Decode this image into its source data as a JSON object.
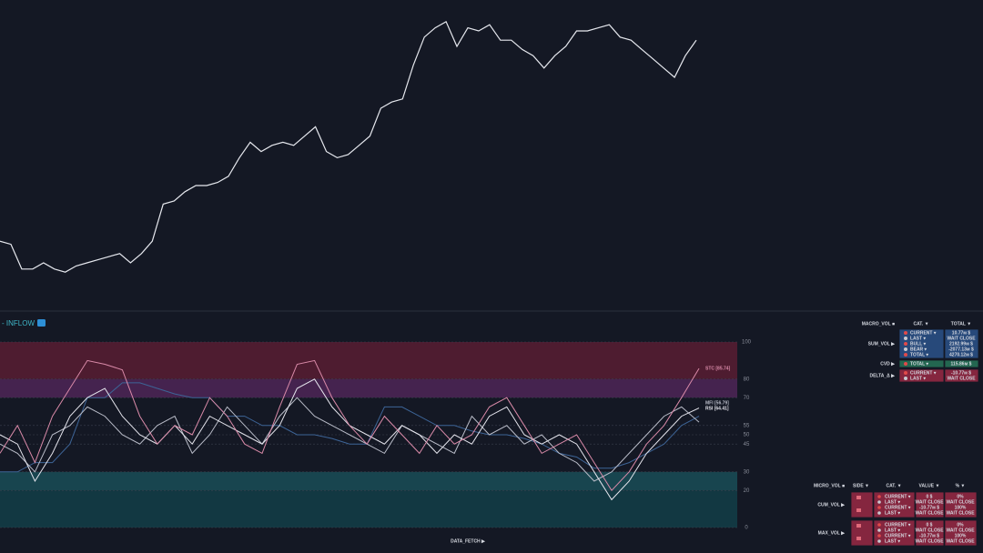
{
  "chart_data": [
    {
      "type": "line",
      "color": "#e6e8ee",
      "ylim": [
        0,
        100
      ],
      "values": [
        22,
        21,
        13,
        13,
        15,
        13,
        12,
        14,
        15,
        16,
        17,
        18,
        15,
        18,
        22,
        34,
        35,
        38,
        40,
        40,
        41,
        43,
        49,
        54,
        51,
        53,
        54,
        53,
        56,
        59,
        51,
        49,
        50,
        53,
        56,
        65,
        67,
        68,
        79,
        88,
        91,
        93,
        85,
        91,
        90,
        92,
        87,
        87,
        84,
        82,
        78,
        82,
        85,
        90,
        90,
        91,
        92,
        88,
        87,
        84,
        81,
        78,
        75,
        82,
        87
      ]
    },
    {
      "type": "line",
      "title": "- INFLOW",
      "ylim": [
        0,
        100
      ],
      "yticks": [
        0,
        20,
        30,
        45,
        50,
        55,
        70,
        80,
        100
      ],
      "bands": [
        {
          "from": 80,
          "to": 100,
          "color": "#4e1c30"
        },
        {
          "from": 70,
          "to": 80,
          "color": "#45234f"
        },
        {
          "from": 20,
          "to": 30,
          "color": "#18454f"
        },
        {
          "from": 0,
          "to": 20,
          "color": "#123842"
        }
      ],
      "series": [
        {
          "color": "#3d6496",
          "values": [
            30,
            30,
            35,
            35,
            45,
            70,
            70,
            78,
            78,
            75,
            72,
            70,
            70,
            60,
            60,
            55,
            55,
            50,
            50,
            48,
            45,
            45,
            65,
            65,
            60,
            55,
            55,
            52,
            50,
            50,
            48,
            45,
            40,
            38,
            32,
            32,
            35,
            40,
            45,
            55,
            60
          ]
        },
        {
          "name": "MFI [56.79]",
          "color": "#b9bcc8",
          "values": [
            45,
            40,
            30,
            50,
            55,
            65,
            60,
            50,
            45,
            55,
            60,
            40,
            50,
            65,
            55,
            45,
            60,
            70,
            60,
            55,
            50,
            45,
            40,
            55,
            50,
            45,
            40,
            60,
            50,
            55,
            45,
            50,
            40,
            35,
            25,
            30,
            40,
            50,
            60,
            65,
            56.79
          ]
        },
        {
          "name": "RSI [64.41]",
          "color": "#e4e4ec",
          "values": [
            50,
            45,
            25,
            40,
            60,
            70,
            75,
            60,
            50,
            45,
            55,
            45,
            60,
            55,
            50,
            45,
            55,
            75,
            80,
            65,
            55,
            50,
            45,
            55,
            50,
            40,
            50,
            45,
            60,
            65,
            50,
            45,
            50,
            45,
            30,
            15,
            25,
            40,
            50,
            60,
            64.41
          ]
        },
        {
          "name": "STC [85.74]",
          "color": "#d98aa8",
          "values": [
            40,
            55,
            35,
            60,
            75,
            90,
            88,
            85,
            60,
            45,
            55,
            50,
            70,
            60,
            45,
            40,
            65,
            88,
            90,
            70,
            55,
            45,
            60,
            50,
            40,
            55,
            45,
            50,
            65,
            70,
            55,
            40,
            45,
            50,
            35,
            20,
            30,
            45,
            55,
            70,
            85.74
          ]
        }
      ]
    }
  ],
  "macro_table": {
    "header": [
      "MACRO_VOL ■",
      "CAT. ▼",
      "TOTAL ▼"
    ],
    "rows": [
      {
        "label": "SUM_VOL ▶",
        "cat": [
          "CURRENT ▾",
          "LAST ▾",
          "BULL ▾",
          "BEAR ▾",
          "TOTAL ▾"
        ],
        "total": [
          "10.77м $",
          "WAIT CLOSE",
          "2192.99м $",
          "-2077.13м $",
          "4270.12м $"
        ]
      },
      {
        "label": "CVD ▶",
        "cat": [
          "TOTAL ▾"
        ],
        "total": [
          "115.86м $"
        ]
      },
      {
        "label": "DELTA_Δ ▶",
        "cat": [
          "CURRENT ▾",
          "LAST ▾"
        ],
        "total": [
          "-10.77м $",
          "WAIT CLOSE"
        ]
      }
    ]
  },
  "micro_table": {
    "header": [
      "MICRO_VOL ■",
      "SIDE ▼",
      "CAT. ▼",
      "VALUE ▼",
      "% ▼"
    ],
    "rows": [
      {
        "label": "CUM_VOL ▶",
        "cat": [
          "CURRENT ▾",
          "LAST ▾",
          "CURRENT ▾",
          "LAST ▾"
        ],
        "value": [
          "0 $",
          "WAIT CLOSE",
          "-10.77м $",
          "WAIT CLOSE"
        ],
        "pct": [
          "0%",
          "WAIT CLOSE",
          "100%",
          "WAIT CLOSE"
        ]
      },
      {
        "label": "MAX_VOL ▶",
        "cat": [
          "CURRENT ▾",
          "LAST ▾",
          "CURRENT ▾",
          "LAST ▾"
        ],
        "value": [
          "0 $",
          "WAIT CLOSE",
          "-10.77м $",
          "WAIT CLOSE"
        ],
        "pct": [
          "0%",
          "WAIT CLOSE",
          "100%",
          "WAIT CLOSE"
        ]
      }
    ]
  },
  "footer": "DATA_FETCH ▶"
}
